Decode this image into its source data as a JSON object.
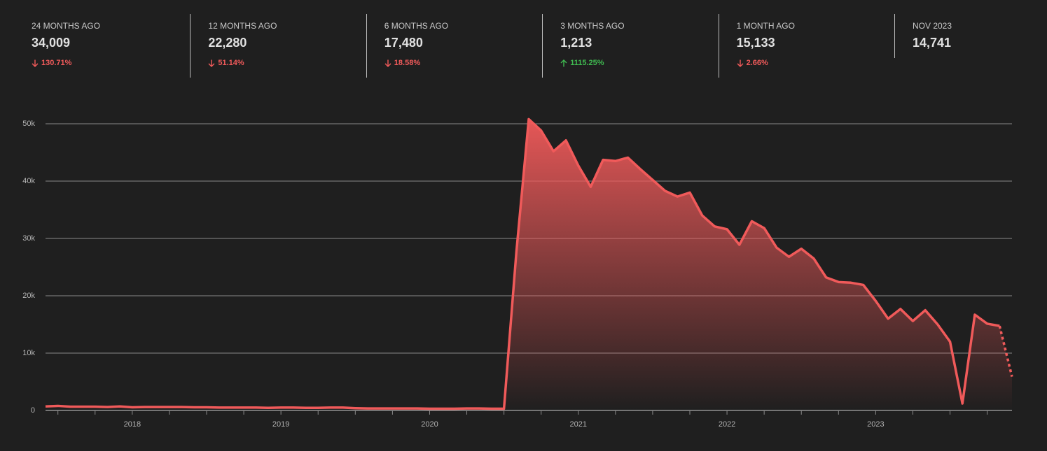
{
  "stats": {
    "up_color": "#3fb950",
    "down_color": "#f05a5a",
    "items": [
      {
        "label": "24 MONTHS AGO",
        "value": "34,009",
        "change": "130.71%",
        "direction": "down"
      },
      {
        "label": "12 MONTHS AGO",
        "value": "22,280",
        "change": "51.14%",
        "direction": "down"
      },
      {
        "label": "6 MONTHS AGO",
        "value": "17,480",
        "change": "18.58%",
        "direction": "down"
      },
      {
        "label": "3 MONTHS AGO",
        "value": "1,213",
        "change": "1115.25%",
        "direction": "up"
      },
      {
        "label": "1 MONTH AGO",
        "value": "15,133",
        "change": "2.66%",
        "direction": "down"
      },
      {
        "label": "NOV 2023",
        "value": "14,741"
      }
    ]
  },
  "chart_data": {
    "type": "area",
    "color": "#f05a5a",
    "grid": true,
    "dashed_last_segment": true,
    "ylim": [
      0,
      50000
    ],
    "yticks": [
      0,
      {
        "value": 10000,
        "label": "10k"
      },
      {
        "value": 20000,
        "label": "20k"
      },
      {
        "value": 30000,
        "label": "30k"
      },
      {
        "value": 40000,
        "label": "40k"
      },
      {
        "value": 50000,
        "label": "50k"
      }
    ],
    "categories": [
      null,
      null,
      null,
      null,
      null,
      null,
      null,
      "2018",
      null,
      null,
      null,
      null,
      null,
      null,
      null,
      null,
      null,
      null,
      null,
      "2019",
      null,
      null,
      null,
      null,
      null,
      null,
      null,
      null,
      null,
      null,
      null,
      "2020",
      null,
      null,
      null,
      null,
      null,
      null,
      null,
      null,
      null,
      null,
      null,
      "2021",
      null,
      null,
      null,
      null,
      null,
      null,
      null,
      null,
      null,
      null,
      null,
      "2022",
      null,
      null,
      null,
      null,
      null,
      null,
      null,
      null,
      null,
      null,
      null,
      "2023",
      null,
      null,
      null,
      null,
      null,
      null,
      null,
      null,
      null,
      null,
      null
    ],
    "values": [
      700,
      800,
      650,
      650,
      650,
      600,
      700,
      550,
      600,
      600,
      600,
      600,
      550,
      550,
      500,
      500,
      500,
      500,
      450,
      500,
      500,
      450,
      450,
      500,
      500,
      400,
      350,
      350,
      350,
      350,
      350,
      300,
      300,
      300,
      350,
      350,
      300,
      300,
      27600,
      50800,
      48800,
      45200,
      47100,
      42700,
      39000,
      43700,
      43500,
      44100,
      42100,
      40200,
      38300,
      37300,
      38000,
      34009,
      32100,
      31600,
      28900,
      33000,
      31800,
      28400,
      26800,
      28200,
      26500,
      23200,
      22400,
      22280,
      21900,
      19100,
      16000,
      17700,
      15600,
      17480,
      15000,
      12000,
      1213,
      16700,
      15133,
      14741,
      5900
    ]
  }
}
